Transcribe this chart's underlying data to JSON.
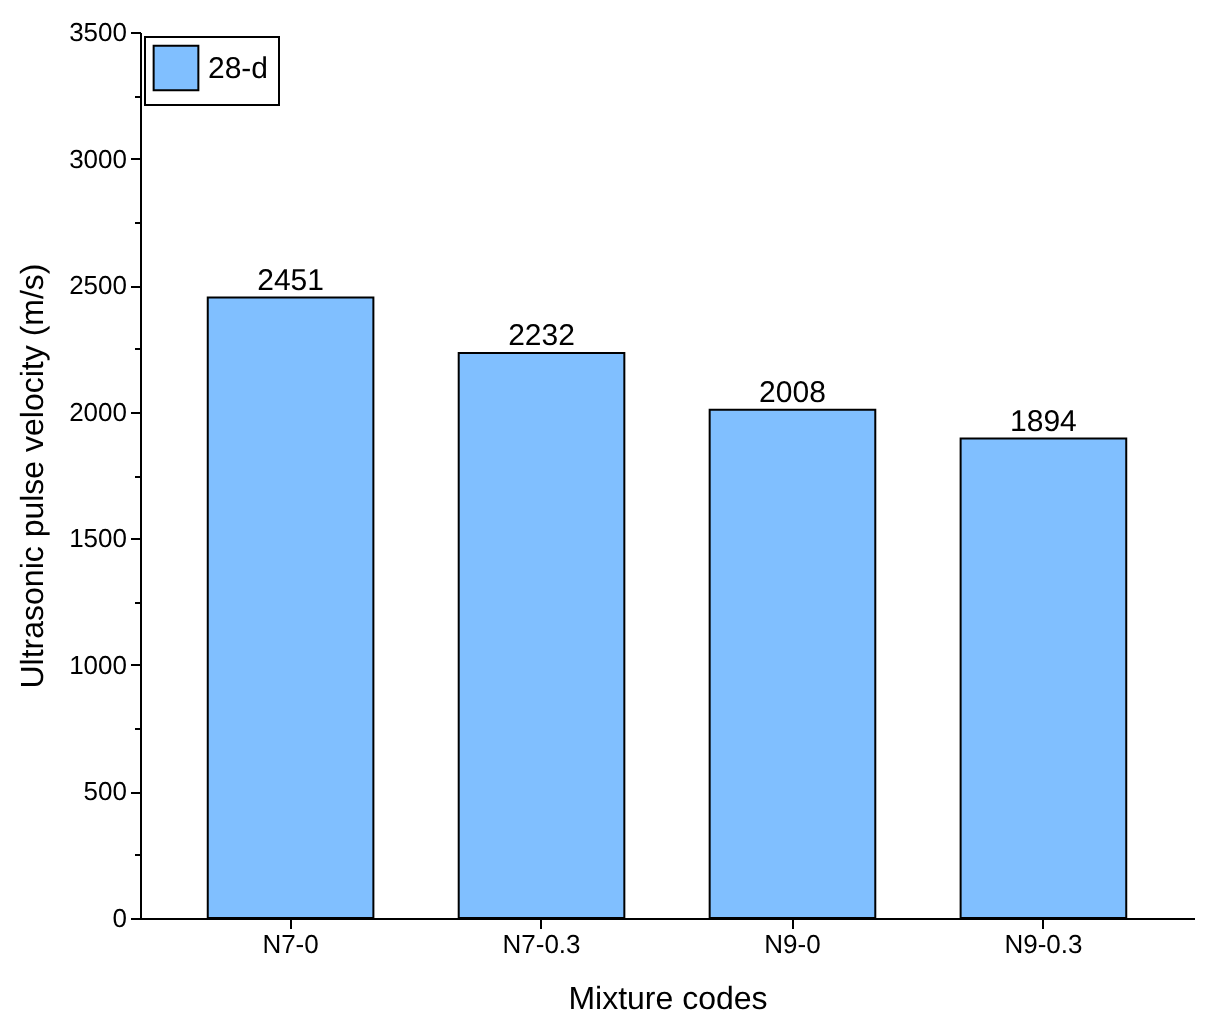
{
  "chart_data": {
    "type": "bar",
    "xlabel": "Mixture codes",
    "ylabel": "Ultrasonic pulse velocity (m/s)",
    "categories": [
      "N7-0",
      "N7-0.3",
      "N9-0",
      "N9-0.3"
    ],
    "series": [
      {
        "name": "28-d",
        "color": "#80bfff",
        "values": [
          2451,
          2232,
          2008,
          1894
        ]
      }
    ],
    "ylim": [
      0,
      3500
    ],
    "yticks": [
      0,
      {
        "value": 250,
        "label": null
      },
      500,
      {
        "value": 750,
        "label": null
      },
      1000,
      {
        "value": 1250,
        "label": null
      },
      1500,
      {
        "value": 1750,
        "label": null
      },
      2000,
      {
        "value": 2250,
        "label": null
      },
      2500,
      {
        "value": 2750,
        "label": null
      },
      3000,
      {
        "value": 3250,
        "label": null
      },
      3500
    ],
    "data_labels": true,
    "legend": "top left",
    "grid": false
  }
}
